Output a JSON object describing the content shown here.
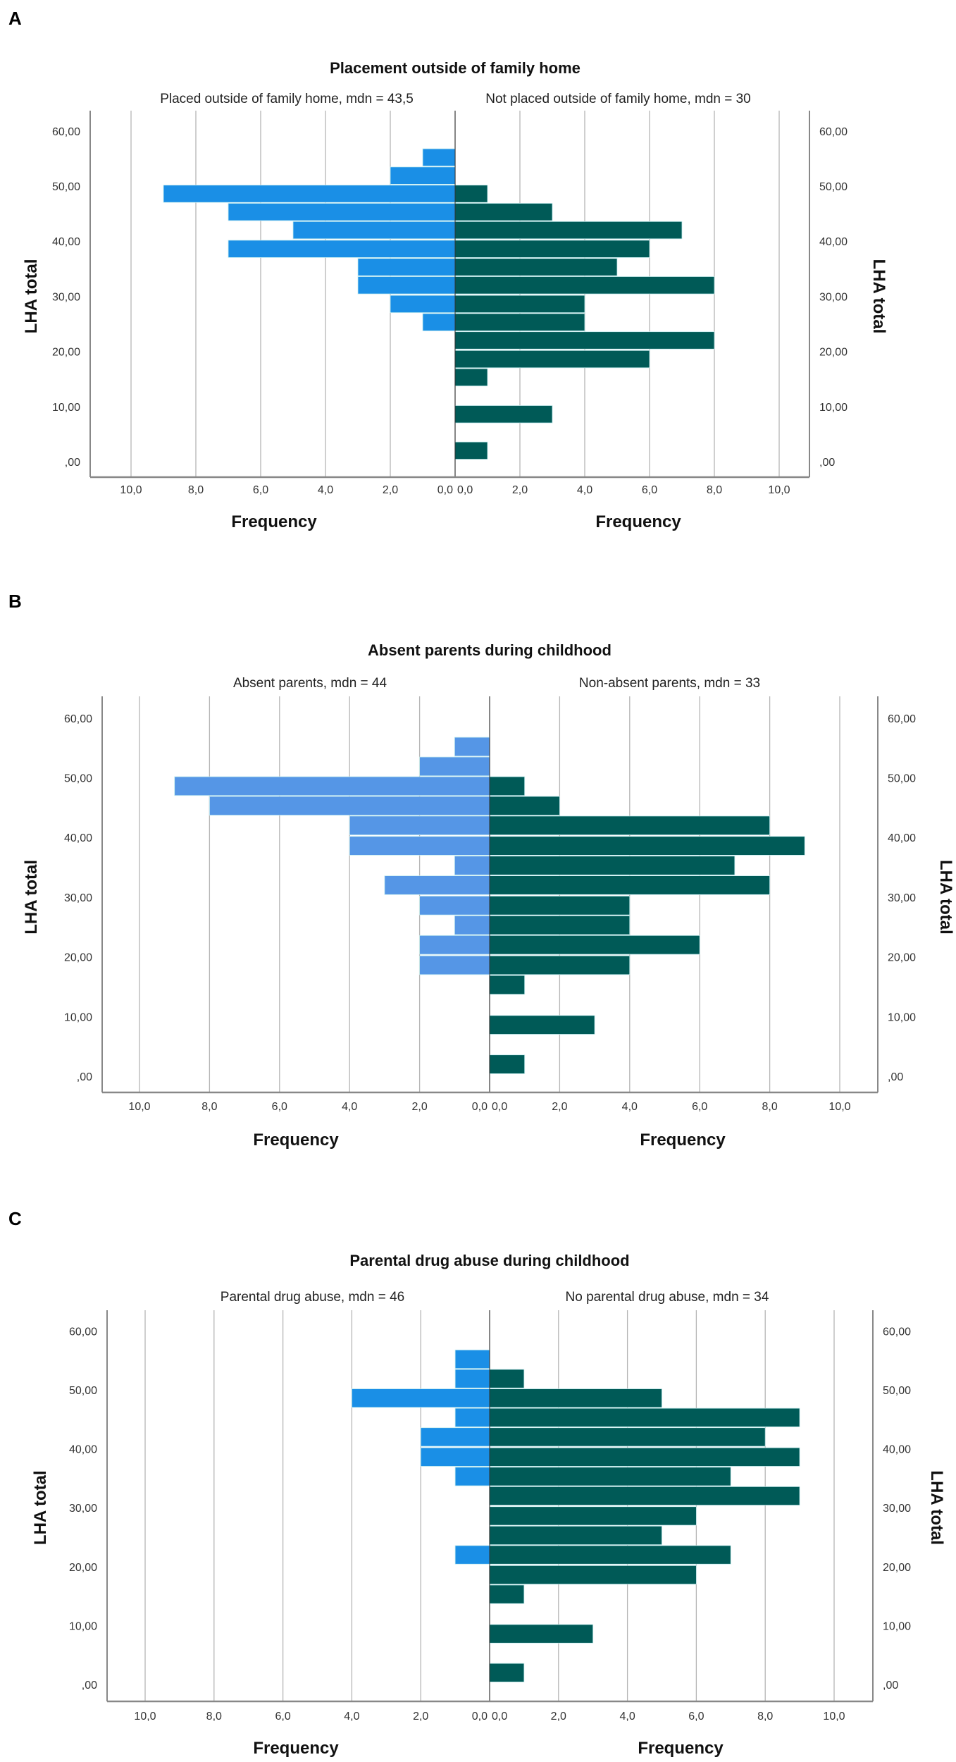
{
  "chart_data": [
    {
      "type": "bar",
      "orientation": "back-to-back horizontal histogram",
      "panel_label": "A",
      "title": "Placement outside of family home",
      "ylabel": "LHA total",
      "xlabel_left": "Frequency",
      "xlabel_right": "Frequency",
      "ylim": [
        0,
        60
      ],
      "xlim": [
        0,
        10
      ],
      "grid": true,
      "y_ticks": [
        "60,00",
        "50,00",
        "40,00",
        "30,00",
        "20,00",
        "10,00",
        ",00"
      ],
      "x_ticks_left": [
        "10,0",
        "8,0",
        "6,0",
        "4,0",
        "2,0",
        "0,0"
      ],
      "x_ticks_right": [
        "0,0",
        "2,0",
        "4,0",
        "6,0",
        "8,0",
        "10,0"
      ],
      "bin_centers": [
        55.2,
        51.9,
        48.6,
        45.3,
        42.0,
        38.6,
        35.3,
        32.0,
        28.6,
        25.3,
        22.0,
        18.6,
        15.3,
        12.0,
        8.6,
        5.3,
        2.0
      ],
      "series": [
        {
          "name": "Placed outside of family home, mdn = 43,5",
          "side": "left",
          "color": "#1a8fe6",
          "values": [
            1,
            2,
            9,
            7,
            5,
            7,
            3,
            3,
            2,
            1,
            0,
            0,
            0,
            0,
            0,
            0,
            0
          ]
        },
        {
          "name": "Not placed outside of family home, mdn = 30",
          "side": "right",
          "color": "#005a57",
          "values": [
            0,
            0,
            1,
            3,
            7,
            6,
            5,
            8,
            4,
            4,
            8,
            6,
            1,
            0,
            3,
            0,
            1
          ]
        }
      ]
    },
    {
      "type": "bar",
      "orientation": "back-to-back horizontal histogram",
      "panel_label": "B",
      "title": "Absent parents during childhood",
      "ylabel": "LHA total",
      "xlabel_left": "Frequency",
      "xlabel_right": "Frequency",
      "ylim": [
        0,
        60
      ],
      "xlim": [
        0,
        10
      ],
      "grid": true,
      "y_ticks": [
        "60,00",
        "50,00",
        "40,00",
        "30,00",
        "20,00",
        "10,00",
        ",00"
      ],
      "x_ticks_left": [
        "10,0",
        "8,0",
        "6,0",
        "4,0",
        "2,0",
        "0,0"
      ],
      "x_ticks_right": [
        "0,0",
        "2,0",
        "4,0",
        "6,0",
        "8,0",
        "10,0"
      ],
      "bin_centers": [
        55.2,
        51.9,
        48.6,
        45.3,
        42.0,
        38.6,
        35.3,
        32.0,
        28.6,
        25.3,
        22.0,
        18.6,
        15.3,
        12.0,
        8.6,
        5.3,
        2.0
      ],
      "series": [
        {
          "name": "Absent parents, mdn = 44",
          "side": "left",
          "color": "#5596e6",
          "values": [
            1,
            2,
            9,
            8,
            4,
            4,
            1,
            3,
            2,
            1,
            2,
            2,
            0,
            0,
            0,
            0,
            0
          ]
        },
        {
          "name": "Non-absent parents, mdn = 33",
          "side": "right",
          "color": "#005a57",
          "values": [
            0,
            0,
            1,
            2,
            8,
            9,
            7,
            8,
            4,
            4,
            6,
            4,
            1,
            0,
            3,
            0,
            1
          ]
        }
      ]
    },
    {
      "type": "bar",
      "orientation": "back-to-back horizontal histogram",
      "panel_label": "C",
      "title": "Parental drug abuse during childhood",
      "ylabel": "LHA total",
      "xlabel_left": "Frequency",
      "xlabel_right": "Frequency",
      "ylim": [
        0,
        60
      ],
      "xlim": [
        0,
        10
      ],
      "grid": true,
      "y_ticks": [
        "60,00",
        "50,00",
        "40,00",
        "30,00",
        "20,00",
        "10,00",
        ",00"
      ],
      "x_ticks_left": [
        "10,0",
        "8,0",
        "6,0",
        "4,0",
        "2,0",
        "0,0"
      ],
      "x_ticks_right": [
        "0,0",
        "2,0",
        "4,0",
        "6,0",
        "8,0",
        "10,0"
      ],
      "bin_centers": [
        55.2,
        51.9,
        48.6,
        45.3,
        42.0,
        38.6,
        35.3,
        32.0,
        28.6,
        25.3,
        22.0,
        18.6,
        15.3,
        12.0,
        8.6,
        5.3,
        2.0
      ],
      "series": [
        {
          "name": "Parental drug abuse, mdn = 46",
          "side": "left",
          "color": "#1a8fe6",
          "values": [
            1,
            1,
            4,
            1,
            2,
            2,
            1,
            0,
            0,
            0,
            1,
            0,
            0,
            0,
            0,
            0,
            0
          ]
        },
        {
          "name": "No parental drug abuse, mdn = 34",
          "side": "right",
          "color": "#005a57",
          "values": [
            0,
            1,
            5,
            9,
            8,
            9,
            7,
            9,
            6,
            5,
            7,
            6,
            1,
            0,
            3,
            0,
            1
          ]
        }
      ]
    }
  ]
}
